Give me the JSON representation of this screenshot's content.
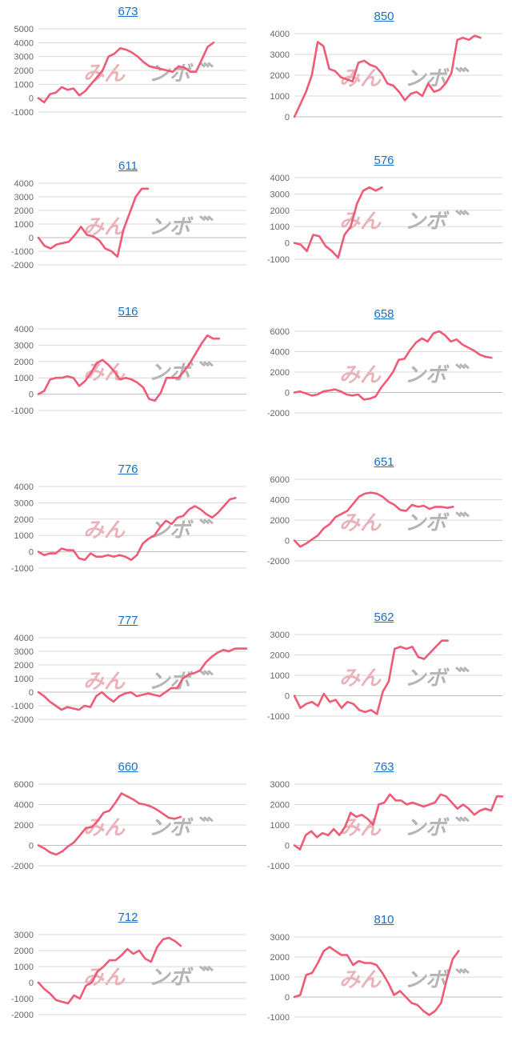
{
  "watermark": {
    "left": "みん",
    "right": "ンボ"
  },
  "colors": {
    "line": "#ef5b76",
    "grid": "#d9d9d9",
    "zero": "#bdbdbd",
    "title": "#1a6fc9",
    "wm_left": "#e9b3bb",
    "wm_right": "#b5b5b5"
  },
  "chart_data": [
    {
      "type": "line",
      "title": "673",
      "yticks": [
        -1000,
        0,
        1000,
        2000,
        3000,
        4000,
        5000
      ],
      "ylim": [
        -1000,
        5000
      ],
      "values": [
        0,
        -300,
        300,
        400,
        800,
        600,
        700,
        200,
        500,
        1000,
        1500,
        2000,
        3000,
        3200,
        3600,
        3500,
        3300,
        3000,
        2600,
        2300,
        2200,
        2100,
        2000,
        1900,
        2300,
        2200,
        1900,
        1900,
        2800,
        3700,
        4000
      ]
    },
    {
      "type": "line",
      "title": "850",
      "yticks": [
        0,
        1000,
        2000,
        3000,
        4000
      ],
      "ylim": [
        0,
        4000
      ],
      "values": [
        0,
        600,
        1200,
        2000,
        3600,
        3400,
        2300,
        2200,
        1900,
        1800,
        1700,
        2600,
        2700,
        2500,
        2400,
        2100,
        1600,
        1500,
        1200,
        800,
        1100,
        1200,
        1000,
        1600,
        1200,
        1300,
        1600,
        2100,
        3700,
        3800,
        3700,
        3900,
        3800
      ]
    },
    {
      "type": "line",
      "title": "611",
      "yticks": [
        -2000,
        -1000,
        0,
        1000,
        2000,
        3000,
        4000
      ],
      "ylim": [
        -2000,
        4000
      ],
      "values": [
        0,
        -600,
        -800,
        -500,
        -400,
        -300,
        200,
        800,
        200,
        100,
        -200,
        -800,
        -1000,
        -1400,
        600,
        1800,
        3000,
        3600,
        3600
      ]
    },
    {
      "type": "line",
      "title": "576",
      "yticks": [
        -1000,
        0,
        1000,
        2000,
        3000,
        4000
      ],
      "ylim": [
        -1000,
        4000
      ],
      "values": [
        0,
        -100,
        -500,
        500,
        400,
        -200,
        -500,
        -900,
        500,
        1000,
        2400,
        3200,
        3400,
        3200,
        3400
      ]
    },
    {
      "type": "line",
      "title": "516",
      "yticks": [
        -1000,
        0,
        1000,
        2000,
        3000,
        4000
      ],
      "ylim": [
        -1000,
        4000
      ],
      "values": [
        0,
        200,
        900,
        1000,
        1000,
        1100,
        1000,
        500,
        800,
        1300,
        1900,
        2100,
        1800,
        1400,
        900,
        1000,
        900,
        700,
        400,
        -300,
        -400,
        100,
        1000,
        1000,
        1000,
        1400,
        1900,
        2500,
        3100,
        3600,
        3400,
        3400
      ]
    },
    {
      "type": "line",
      "title": "658",
      "yticks": [
        -2000,
        0,
        2000,
        4000,
        6000
      ],
      "ylim": [
        -2000,
        6000
      ],
      "values": [
        0,
        100,
        -100,
        -300,
        -200,
        100,
        200,
        300,
        100,
        -200,
        -300,
        -200,
        -700,
        -600,
        -400,
        500,
        1200,
        2000,
        3200,
        3300,
        4200,
        4900,
        5300,
        5000,
        5800,
        6000,
        5600,
        5000,
        5200,
        4700,
        4400,
        4100,
        3700,
        3500,
        3400
      ]
    },
    {
      "type": "line",
      "title": "776",
      "yticks": [
        -1000,
        0,
        1000,
        2000,
        3000,
        4000
      ],
      "ylim": [
        -1000,
        4000
      ],
      "values": [
        0,
        -200,
        -100,
        -100,
        200,
        100,
        100,
        -400,
        -500,
        -100,
        -300,
        -300,
        -200,
        -300,
        -200,
        -300,
        -500,
        -200,
        500,
        800,
        1000,
        1500,
        1900,
        1700,
        2100,
        2200,
        2600,
        2800,
        2600,
        2300,
        2100,
        2400,
        2800,
        3200,
        3300
      ]
    },
    {
      "type": "line",
      "title": "651",
      "yticks": [
        -2000,
        0,
        2000,
        4000,
        6000
      ],
      "ylim": [
        -2000,
        6000
      ],
      "values": [
        0,
        -600,
        -300,
        100,
        500,
        1200,
        1600,
        2300,
        2600,
        2900,
        3600,
        4300,
        4600,
        4700,
        4600,
        4300,
        3800,
        3500,
        3000,
        2900,
        3500,
        3300,
        3400,
        3100,
        3300,
        3300,
        3200,
        3300
      ]
    },
    {
      "type": "line",
      "title": "777",
      "yticks": [
        -2000,
        -1000,
        0,
        1000,
        2000,
        3000,
        4000
      ],
      "ylim": [
        -2000,
        4000
      ],
      "values": [
        0,
        -300,
        -700,
        -1000,
        -1300,
        -1100,
        -1200,
        -1300,
        -1000,
        -1100,
        -300,
        0,
        -400,
        -700,
        -300,
        -100,
        0,
        -300,
        -200,
        -100,
        -200,
        -300,
        0,
        300,
        300,
        1000,
        1300,
        1400,
        1600,
        2200,
        2600,
        2900,
        3100,
        3000,
        3200,
        3200,
        3200
      ]
    },
    {
      "type": "line",
      "title": "562",
      "yticks": [
        -1000,
        0,
        1000,
        2000,
        3000
      ],
      "ylim": [
        -1000,
        3000
      ],
      "values": [
        0,
        -600,
        -400,
        -300,
        -500,
        100,
        -300,
        -200,
        -600,
        -300,
        -400,
        -700,
        -800,
        -700,
        -900,
        200,
        700,
        2300,
        2400,
        2300,
        2400,
        1900,
        1800,
        2100,
        2400,
        2700,
        2700
      ]
    },
    {
      "type": "line",
      "title": "660",
      "yticks": [
        -2000,
        0,
        2000,
        4000,
        6000
      ],
      "ylim": [
        -2000,
        6000
      ],
      "values": [
        0,
        -300,
        -700,
        -900,
        -600,
        -100,
        300,
        1000,
        1700,
        1800,
        2400,
        3200,
        3400,
        4200,
        5100,
        4800,
        4500,
        4100,
        4000,
        3800,
        3500,
        3100,
        2700,
        2600,
        2800
      ]
    },
    {
      "type": "line",
      "title": "763",
      "yticks": [
        -1000,
        0,
        1000,
        2000,
        3000
      ],
      "ylim": [
        -1000,
        3000
      ],
      "values": [
        0,
        -200,
        500,
        700,
        400,
        600,
        500,
        800,
        500,
        900,
        1600,
        1400,
        1500,
        1300,
        1000,
        2000,
        2100,
        2500,
        2200,
        2200,
        2000,
        2100,
        2000,
        1900,
        2000,
        2100,
        2500,
        2400,
        2100,
        1800,
        2000,
        1800,
        1500,
        1700,
        1800,
        1700,
        2400,
        2400
      ]
    },
    {
      "type": "line",
      "title": "712",
      "yticks": [
        -2000,
        -1000,
        0,
        1000,
        2000,
        3000
      ],
      "ylim": [
        -2000,
        3000
      ],
      "values": [
        0,
        -400,
        -700,
        -1100,
        -1200,
        -1300,
        -800,
        -1000,
        -200,
        0,
        700,
        1000,
        1400,
        1400,
        1700,
        2100,
        1800,
        2000,
        1500,
        1300,
        2200,
        2700,
        2800,
        2600,
        2300
      ]
    },
    {
      "type": "line",
      "title": "810",
      "yticks": [
        -1000,
        0,
        1000,
        2000,
        3000
      ],
      "ylim": [
        -1000,
        3000
      ],
      "values": [
        0,
        100,
        1100,
        1200,
        1700,
        2300,
        2500,
        2300,
        2100,
        2100,
        1600,
        1800,
        1700,
        1700,
        1600,
        1200,
        700,
        100,
        300,
        0,
        -300,
        -400,
        -700,
        -900,
        -700,
        -300,
        900,
        1900,
        2300
      ]
    }
  ]
}
